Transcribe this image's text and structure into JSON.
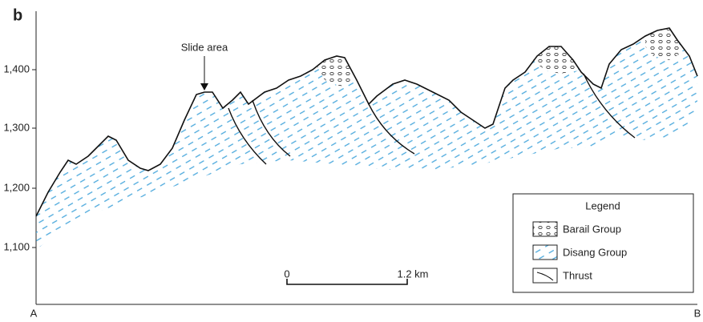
{
  "panel": "b",
  "axis": {
    "ticks": [
      "1,400",
      "1,300",
      "1,200",
      "1,100"
    ]
  },
  "annotation": "Slide area",
  "scale_bar": {
    "start": "0",
    "end": "1.2 km"
  },
  "ends": {
    "left": "A",
    "right": "B"
  },
  "legend": {
    "title": "Legend",
    "items": [
      "Barail Group",
      "Disang Group",
      "Thrust"
    ]
  }
}
